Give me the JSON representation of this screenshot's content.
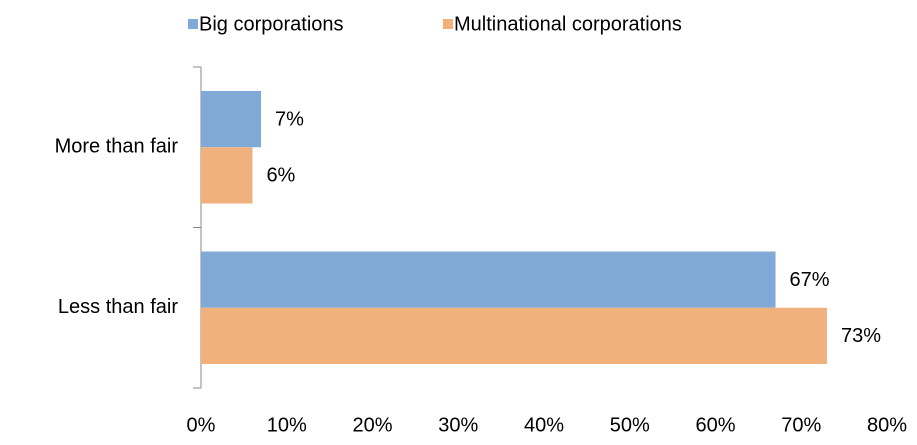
{
  "chart_data": {
    "type": "bar",
    "orientation": "horizontal",
    "categories": [
      "More than fair",
      "Less than fair"
    ],
    "series": [
      {
        "name": "Big corporations",
        "color": "#80a9d8",
        "values": [
          7,
          67
        ],
        "value_labels": [
          "7%",
          "67%"
        ]
      },
      {
        "name": "Multinational corporations",
        "color": "#f0b17d",
        "values": [
          6,
          73
        ],
        "value_labels": [
          "6%",
          "73%"
        ]
      }
    ],
    "xlim": [
      0,
      80
    ],
    "xticks": [
      {
        "value": 0,
        "label": "0%"
      },
      {
        "value": 10,
        "label": "10%"
      },
      {
        "value": 20,
        "label": "20%"
      },
      {
        "value": 30,
        "label": "30%"
      },
      {
        "value": 40,
        "label": "40%"
      },
      {
        "value": 50,
        "label": "50%"
      },
      {
        "value": 60,
        "label": "60%"
      },
      {
        "value": 70,
        "label": "70%"
      },
      {
        "value": 80,
        "label": "80%"
      }
    ],
    "grid": false,
    "legend": "top"
  }
}
